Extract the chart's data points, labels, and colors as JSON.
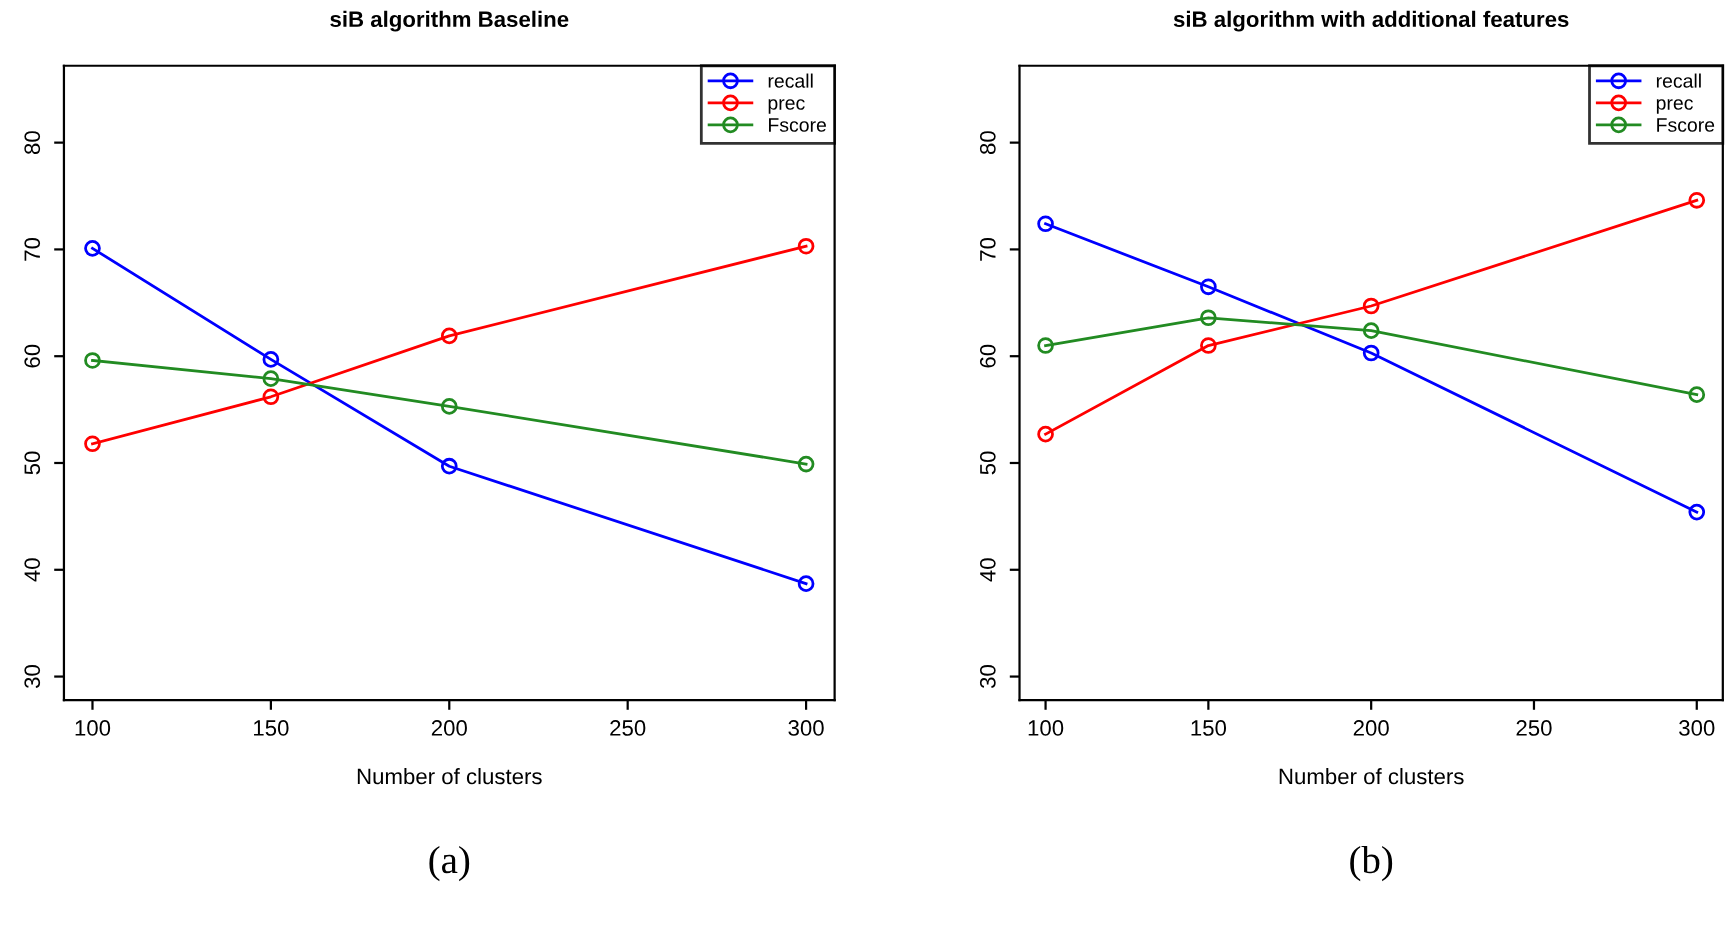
{
  "chart_data": [
    {
      "type": "line",
      "title": "siB algorithm Baseline",
      "xlabel": "Number of clusters",
      "x": [
        100,
        150,
        200,
        300
      ],
      "xlim": [
        92,
        308
      ],
      "xticks": [
        100,
        150,
        200,
        250,
        300
      ],
      "ylim": [
        27.8,
        87.2
      ],
      "yticks": [
        30,
        40,
        50,
        60,
        70,
        80
      ],
      "marker": "circle",
      "legend": "top right",
      "grid": false,
      "annotations": [
        "(a)"
      ],
      "series": [
        {
          "name": "recall",
          "color": "#0000ff",
          "values": [
            70.1,
            59.7,
            49.7,
            38.7
          ]
        },
        {
          "name": "prec",
          "color": "#ff0000",
          "values": [
            51.8,
            56.2,
            61.9,
            70.3
          ]
        },
        {
          "name": "Fscore",
          "color": "#228b22",
          "values": [
            59.6,
            57.9,
            55.3,
            49.9
          ]
        }
      ]
    },
    {
      "type": "line",
      "title": "siB algorithm with additional features",
      "xlabel": "Number of clusters",
      "x": [
        100,
        150,
        200,
        300
      ],
      "xlim": [
        92,
        308
      ],
      "xticks": [
        100,
        150,
        200,
        250,
        300
      ],
      "ylim": [
        27.8,
        87.2
      ],
      "yticks": [
        30,
        40,
        50,
        60,
        70,
        80
      ],
      "marker": "circle",
      "legend": "top right",
      "grid": false,
      "annotations": [
        "(b)"
      ],
      "series": [
        {
          "name": "recall",
          "color": "#0000ff",
          "values": [
            72.4,
            66.5,
            60.3,
            45.4
          ]
        },
        {
          "name": "prec",
          "color": "#ff0000",
          "values": [
            52.7,
            61.0,
            64.7,
            74.6
          ]
        },
        {
          "name": "Fscore",
          "color": "#228b22",
          "values": [
            61.0,
            63.6,
            62.4,
            56.4
          ]
        }
      ]
    }
  ]
}
